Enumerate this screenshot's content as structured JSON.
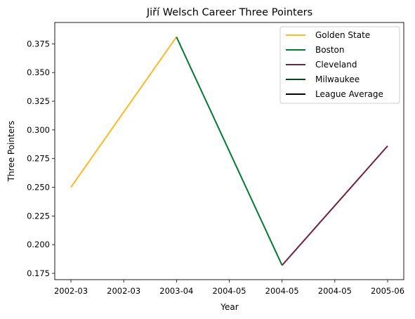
{
  "chart_data": {
    "type": "line",
    "title": "Jiří Welsch Career Three Pointers",
    "xlabel": "Year",
    "ylabel": "Three Pointers",
    "x_tick_labels": [
      "2002-03",
      "2002-03",
      "2003-04",
      "2004-05",
      "2004-05",
      "2004-05",
      "2005-06"
    ],
    "y_ticks": [
      0.175,
      0.2,
      0.225,
      0.25,
      0.275,
      0.3,
      0.325,
      0.35,
      0.375
    ],
    "y_tick_labels": [
      "0.175",
      "0.200",
      "0.225",
      "0.250",
      "0.275",
      "0.300",
      "0.325",
      "0.350",
      "0.375"
    ],
    "ylim": [
      0.1695,
      0.3936
    ],
    "grid": false,
    "legend_position": "top-right",
    "series": [
      {
        "name": "Golden State",
        "color": "#FDB927",
        "points": [
          [
            "2002-03",
            0.25
          ],
          [
            "2003-04",
            0.381
          ]
        ]
      },
      {
        "name": "Boston",
        "color": "#007A33",
        "points": [
          [
            "2003-04",
            0.381
          ],
          [
            "2004-05",
            0.182
          ]
        ]
      },
      {
        "name": "Cleveland",
        "color": "#6F263D",
        "points": [
          [
            "2004-05",
            0.182
          ],
          [
            "2005-06",
            0.286
          ]
        ]
      },
      {
        "name": "Milwaukee",
        "color": "#00471B",
        "points": []
      },
      {
        "name": "League Average",
        "color": "#000000",
        "points": []
      }
    ]
  }
}
